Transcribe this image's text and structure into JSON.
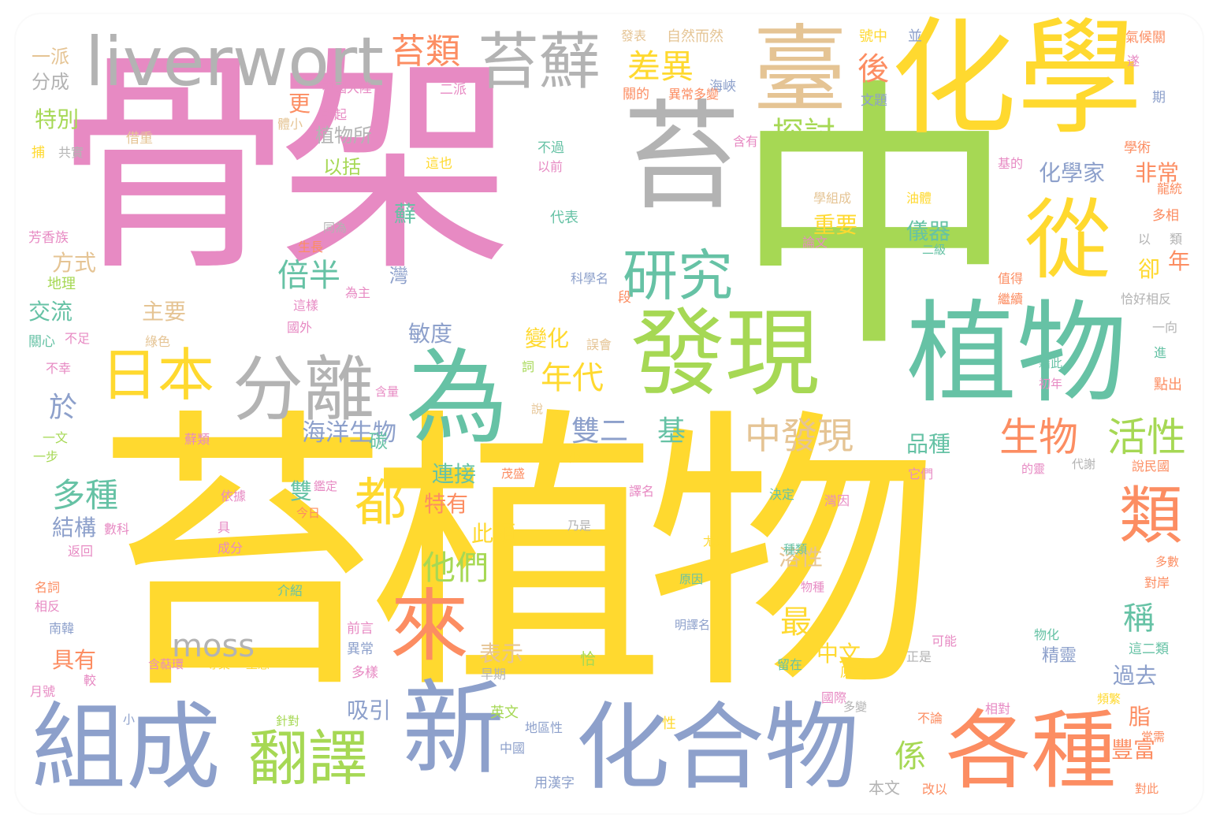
{
  "palette": {
    "pink": "#e78ac3",
    "yellow": "#ffd92f",
    "green": "#a6d854",
    "teal": "#66c2a5",
    "orange": "#fc8d62",
    "blue": "#8da0cb",
    "gray": "#b3b3b3",
    "tan": "#e5c494"
  },
  "words": [
    {
      "text": "骨架",
      "color": "pink"
    },
    {
      "text": "苔植物",
      "color": "yellow"
    },
    {
      "text": "中",
      "color": "green"
    },
    {
      "text": "化學",
      "color": "yellow"
    },
    {
      "text": "苔",
      "color": "gray"
    },
    {
      "text": "liverwort",
      "color": "gray"
    },
    {
      "text": "臺",
      "color": "tan"
    },
    {
      "text": "苔蘚",
      "color": "gray"
    },
    {
      "text": "發現",
      "color": "green"
    },
    {
      "text": "植物",
      "color": "teal"
    },
    {
      "text": "從",
      "color": "yellow"
    },
    {
      "text": "為",
      "color": "teal"
    },
    {
      "text": "分離",
      "color": "gray"
    },
    {
      "text": "日本",
      "color": "yellow"
    },
    {
      "text": "研究",
      "color": "teal"
    },
    {
      "text": "組成",
      "color": "blue"
    },
    {
      "text": "新",
      "color": "blue"
    },
    {
      "text": "化合物",
      "color": "blue"
    },
    {
      "text": "各種",
      "color": "orange"
    },
    {
      "text": "來",
      "color": "orange"
    },
    {
      "text": "翻譯",
      "color": "green"
    },
    {
      "text": "都",
      "color": "yellow"
    },
    {
      "text": "苔類",
      "color": "orange"
    },
    {
      "text": "差異",
      "color": "yellow"
    },
    {
      "text": "後",
      "color": "orange"
    },
    {
      "text": "探討",
      "color": "green"
    },
    {
      "text": "倍半",
      "color": "teal"
    },
    {
      "text": "生物",
      "color": "orange"
    },
    {
      "text": "活性",
      "color": "green"
    },
    {
      "text": "中發現",
      "color": "tan"
    },
    {
      "text": "類",
      "color": "orange"
    },
    {
      "text": "年代",
      "color": "yellow"
    },
    {
      "text": "多種",
      "color": "teal"
    },
    {
      "text": "他們",
      "color": "green"
    },
    {
      "text": "moss",
      "color": "gray"
    },
    {
      "text": "最",
      "color": "yellow"
    },
    {
      "text": "稱",
      "color": "teal"
    },
    {
      "text": "海洋生物",
      "color": "blue"
    },
    {
      "text": "雙二",
      "color": "blue"
    },
    {
      "text": "基",
      "color": "teal"
    },
    {
      "text": "化學家",
      "color": "blue"
    },
    {
      "text": "非常",
      "color": "orange"
    },
    {
      "text": "儀器",
      "color": "teal"
    },
    {
      "text": "重要",
      "color": "yellow"
    },
    {
      "text": "品種",
      "color": "teal"
    },
    {
      "text": "連接",
      "color": "teal"
    },
    {
      "text": "特有",
      "color": "orange"
    },
    {
      "text": "此類",
      "color": "yellow"
    },
    {
      "text": "溶性",
      "color": "tan"
    },
    {
      "text": "結構",
      "color": "blue"
    },
    {
      "text": "具有",
      "color": "orange"
    },
    {
      "text": "中文",
      "color": "yellow"
    },
    {
      "text": "吸引",
      "color": "blue"
    },
    {
      "text": "過去",
      "color": "blue"
    },
    {
      "text": "精靈",
      "color": "blue"
    },
    {
      "text": "豐富",
      "color": "orange"
    },
    {
      "text": "係",
      "color": "green"
    },
    {
      "text": "脂",
      "color": "orange"
    },
    {
      "text": "表示",
      "color": "tan"
    },
    {
      "text": "變化",
      "color": "yellow"
    },
    {
      "text": "敏度",
      "color": "blue"
    },
    {
      "text": "主要",
      "color": "tan"
    },
    {
      "text": "交流",
      "color": "teal"
    },
    {
      "text": "方式",
      "color": "tan"
    },
    {
      "text": "特別",
      "color": "green"
    },
    {
      "text": "分成",
      "color": "gray"
    },
    {
      "text": "一派",
      "color": "tan"
    },
    {
      "text": "植物所",
      "color": "gray"
    },
    {
      "text": "以括",
      "color": "green"
    },
    {
      "text": "更",
      "color": "orange"
    },
    {
      "text": "於",
      "color": "blue"
    },
    {
      "text": "碳",
      "color": "teal"
    },
    {
      "text": "雙",
      "color": "teal"
    },
    {
      "text": "蘚",
      "color": "teal"
    },
    {
      "text": "灣",
      "color": "blue"
    },
    {
      "text": "卻",
      "color": "yellow"
    },
    {
      "text": "年",
      "color": "orange"
    },
    {
      "text": "海峽",
      "color": "blue"
    },
    {
      "text": "自然而然",
      "color": "tan"
    },
    {
      "text": "發表",
      "color": "tan"
    },
    {
      "text": "號中",
      "color": "yellow"
    },
    {
      "text": "並",
      "color": "blue"
    },
    {
      "text": "氣候關",
      "color": "orange"
    },
    {
      "text": "中國大陸",
      "color": "pink"
    },
    {
      "text": "二派",
      "color": "pink"
    },
    {
      "text": "關的",
      "color": "orange"
    },
    {
      "text": "異常多變",
      "color": "orange"
    },
    {
      "text": "文題",
      "color": "blue"
    },
    {
      "text": "期",
      "color": "blue"
    },
    {
      "text": "學術",
      "color": "orange"
    },
    {
      "text": "基的",
      "color": "pink"
    },
    {
      "text": "龍統",
      "color": "orange"
    },
    {
      "text": "借重",
      "color": "tan"
    },
    {
      "text": "不過",
      "color": "teal"
    },
    {
      "text": "以前",
      "color": "pink"
    },
    {
      "text": "這也",
      "color": "yellow"
    },
    {
      "text": "含有",
      "color": "pink"
    },
    {
      "text": "學組成",
      "color": "tan"
    },
    {
      "text": "油體",
      "color": "yellow"
    },
    {
      "text": "多相",
      "color": "orange"
    },
    {
      "text": "以",
      "color": "gray"
    },
    {
      "text": "類",
      "color": "gray"
    },
    {
      "text": "代表",
      "color": "teal"
    },
    {
      "text": "論文",
      "color": "pink"
    },
    {
      "text": "二級",
      "color": "teal"
    },
    {
      "text": "生長",
      "color": "orange"
    },
    {
      "text": "科學名",
      "color": "blue"
    },
    {
      "text": "為主",
      "color": "pink"
    },
    {
      "text": "這樣",
      "color": "pink"
    },
    {
      "text": "段",
      "color": "orange"
    },
    {
      "text": "國外",
      "color": "pink"
    },
    {
      "text": "芳香族",
      "color": "pink"
    },
    {
      "text": "地理",
      "color": "green"
    },
    {
      "text": "關心",
      "color": "teal"
    },
    {
      "text": "不足",
      "color": "pink"
    },
    {
      "text": "綠色",
      "color": "tan"
    },
    {
      "text": "誤會",
      "color": "tan"
    },
    {
      "text": "詞",
      "color": "green"
    },
    {
      "text": "含量",
      "color": "pink"
    },
    {
      "text": "說",
      "color": "tan"
    },
    {
      "text": "不幸",
      "color": "pink"
    },
    {
      "text": "一文",
      "color": "green"
    },
    {
      "text": "一步",
      "color": "green"
    },
    {
      "text": "蘚類",
      "color": "pink"
    },
    {
      "text": "少",
      "color": "yellow"
    },
    {
      "text": "譯名",
      "color": "pink"
    },
    {
      "text": "茂盛",
      "color": "orange"
    },
    {
      "text": "依據",
      "color": "pink"
    },
    {
      "text": "鑑定",
      "color": "pink"
    },
    {
      "text": "決定",
      "color": "teal"
    },
    {
      "text": "今日",
      "color": "orange"
    },
    {
      "text": "數科",
      "color": "pink"
    },
    {
      "text": "具",
      "color": "pink"
    },
    {
      "text": "成分",
      "color": "pink"
    },
    {
      "text": "返回",
      "color": "pink"
    },
    {
      "text": "乃是",
      "color": "gray"
    },
    {
      "text": "尤其",
      "color": "yellow"
    },
    {
      "text": "種類",
      "color": "teal"
    },
    {
      "text": "名詞",
      "color": "orange"
    },
    {
      "text": "相反",
      "color": "pink"
    },
    {
      "text": "介紹",
      "color": "teal"
    },
    {
      "text": "原因",
      "color": "teal"
    },
    {
      "text": "物種",
      "color": "pink"
    },
    {
      "text": "南韓",
      "color": "blue"
    },
    {
      "text": "月號",
      "color": "pink"
    },
    {
      "text": "較",
      "color": "pink"
    },
    {
      "text": "含萜環",
      "color": "pink"
    },
    {
      "text": "專業",
      "color": "yellow"
    },
    {
      "text": "型態",
      "color": "yellow"
    },
    {
      "text": "明譯名",
      "color": "blue"
    },
    {
      "text": "官能",
      "color": "yellow"
    },
    {
      "text": "恰",
      "color": "green"
    },
    {
      "text": "前言",
      "color": "pink"
    },
    {
      "text": "異常",
      "color": "blue"
    },
    {
      "text": "多樣",
      "color": "pink"
    },
    {
      "text": "早期",
      "color": "gray"
    },
    {
      "text": "原文",
      "color": "yellow"
    },
    {
      "text": "留在",
      "color": "teal"
    },
    {
      "text": "正是",
      "color": "gray"
    },
    {
      "text": "可能",
      "color": "pink"
    },
    {
      "text": "物化",
      "color": "teal"
    },
    {
      "text": "這二類",
      "color": "teal"
    },
    {
      "text": "國際",
      "color": "pink"
    },
    {
      "text": "多變",
      "color": "gray"
    },
    {
      "text": "英文",
      "color": "green"
    },
    {
      "text": "針對",
      "color": "green"
    },
    {
      "text": "性",
      "color": "yellow"
    },
    {
      "text": "地區性",
      "color": "blue"
    },
    {
      "text": "中國",
      "color": "blue"
    },
    {
      "text": "小",
      "color": "blue"
    },
    {
      "text": "本文",
      "color": "gray"
    },
    {
      "text": "改以",
      "color": "orange"
    },
    {
      "text": "用漢字",
      "color": "blue"
    },
    {
      "text": "不論",
      "color": "orange"
    },
    {
      "text": "相對",
      "color": "pink"
    },
    {
      "text": "頻繁",
      "color": "yellow"
    },
    {
      "text": "常需",
      "color": "orange"
    },
    {
      "text": "對此",
      "color": "orange"
    },
    {
      "text": "恰好相反",
      "color": "gray"
    },
    {
      "text": "一向",
      "color": "gray"
    },
    {
      "text": "進",
      "color": "teal"
    },
    {
      "text": "點出",
      "color": "orange"
    },
    {
      "text": "藉此",
      "color": "teal"
    },
    {
      "text": "初年",
      "color": "pink"
    },
    {
      "text": "的靈",
      "color": "pink"
    },
    {
      "text": "代謝",
      "color": "gray"
    },
    {
      "text": "說民國",
      "color": "orange"
    },
    {
      "text": "它們",
      "color": "pink"
    },
    {
      "text": "灣因",
      "color": "pink"
    },
    {
      "text": "多數",
      "color": "orange"
    },
    {
      "text": "對岸",
      "color": "orange"
    },
    {
      "text": "繼續",
      "color": "orange"
    },
    {
      "text": "值得",
      "color": "orange"
    },
    {
      "text": "遂",
      "color": "pink"
    },
    {
      "text": "共實",
      "color": "gray"
    },
    {
      "text": "捕",
      "color": "yellow"
    },
    {
      "text": "體小",
      "color": "tan"
    },
    {
      "text": "引起",
      "color": "pink"
    },
    {
      "text": "同為",
      "color": "gray"
    }
  ]
}
